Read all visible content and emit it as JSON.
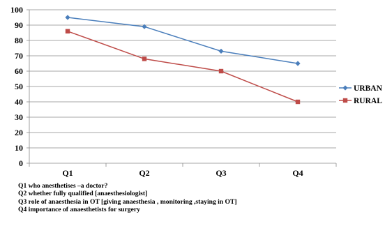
{
  "chart_data": {
    "type": "line",
    "categories": [
      "Q1",
      "Q2",
      "Q3",
      "Q4"
    ],
    "series": [
      {
        "name": "URBAN",
        "values": [
          95,
          89,
          73,
          65
        ],
        "color": "#4a7ebb",
        "marker": "diamond"
      },
      {
        "name": "RURAL",
        "values": [
          86,
          68,
          60,
          40
        ],
        "color": "#be4b48",
        "marker": "square"
      }
    ],
    "ylim": [
      0,
      100
    ],
    "yticks": [
      "0",
      "10",
      "20",
      "30",
      "40",
      "50",
      "60",
      "70",
      "80",
      "90",
      "100"
    ],
    "grid": true,
    "legend_position": "right"
  },
  "notes": [
    "Q1 who anesthetises –a doctor?",
    "Q2  whether fully qualified [anaesthesiologist]",
    "Q3 role of anaesthesia in OT [giving anaesthesia , monitoring ,staying in OT]",
    "Q4 importance of anaesthetists for surgery"
  ]
}
